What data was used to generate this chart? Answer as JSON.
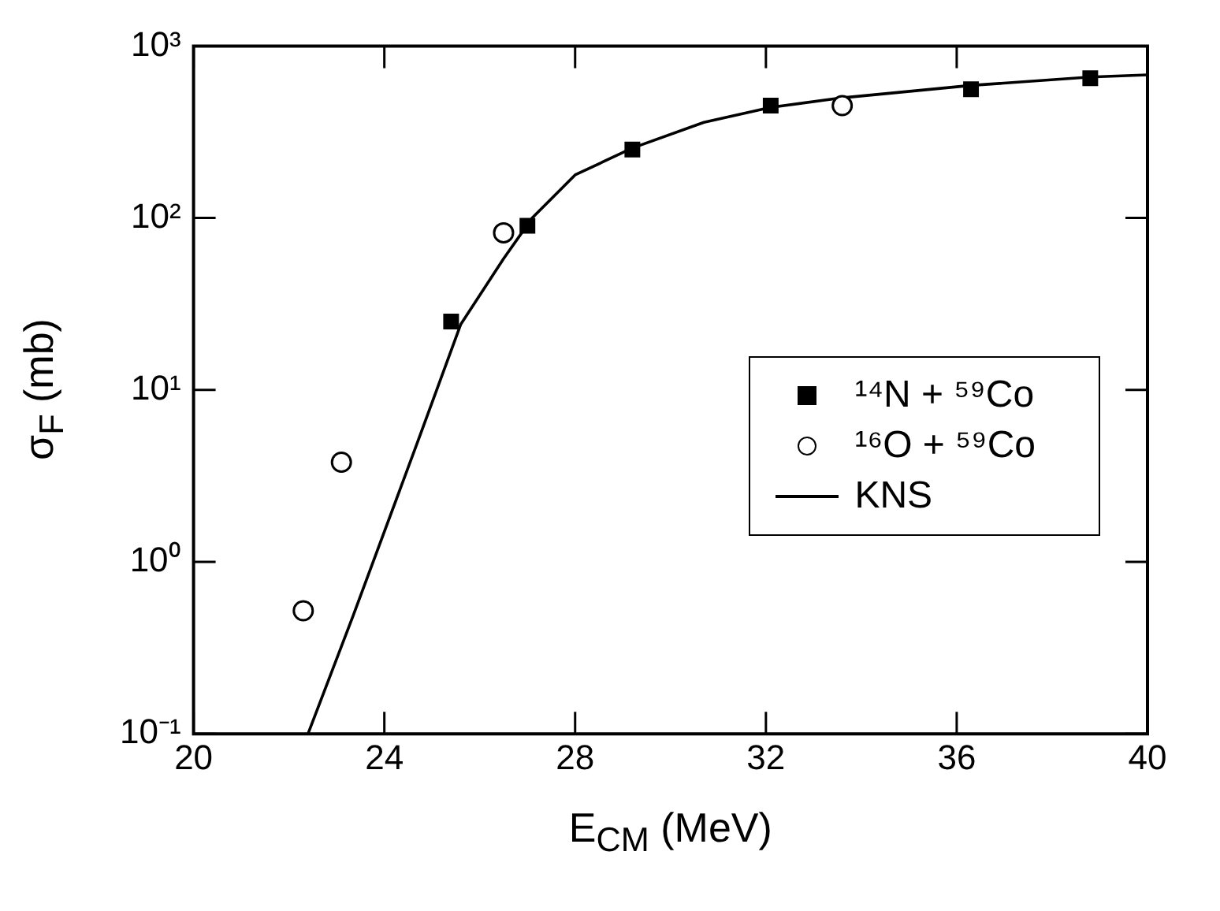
{
  "chart_data": {
    "type": "scatter",
    "xlabel": "E$_{CM}$ (MeV)",
    "ylabel": "σ$_{F}$ (mb)",
    "xlim": [
      20,
      40
    ],
    "xticks": [
      20,
      24,
      28,
      32,
      36,
      40
    ],
    "ylim": [
      0.1,
      1000
    ],
    "yticks": [
      {
        "value": 0.1,
        "label": "10⁻¹"
      },
      {
        "value": 1,
        "label": "10⁰"
      },
      {
        "value": 10,
        "label": "10¹"
      },
      {
        "value": 100,
        "label": "10²"
      },
      {
        "value": 1000,
        "label": "10³"
      }
    ],
    "log": "y",
    "grid": false,
    "legend": "right",
    "series": [
      {
        "name": "¹⁴N + ⁵⁹Co",
        "type": "scatter",
        "marker": "square",
        "color": "#000000",
        "x": [
          25.4,
          27.0,
          29.2,
          32.1,
          36.3,
          38.8
        ],
        "values": [
          25,
          90,
          250,
          450,
          560,
          650
        ]
      },
      {
        "name": "¹⁶O + ⁵⁹Co",
        "type": "scatter",
        "marker": "circle",
        "color": "#000000",
        "x": [
          22.3,
          23.1,
          26.5,
          33.6
        ],
        "values": [
          0.52,
          3.8,
          82,
          450
        ]
      },
      {
        "name": "KNS",
        "type": "line",
        "marker": "none",
        "color": "#000000",
        "x": [
          22.4,
          23.35,
          24.7,
          25.6,
          26.5,
          27.1,
          28.0,
          29.2,
          30.7,
          32.1,
          33.6,
          36.3,
          38.8,
          40
        ],
        "values": [
          0.1,
          0.49,
          5,
          24,
          58,
          100,
          178,
          255,
          360,
          440,
          500,
          590,
          660,
          680
        ]
      }
    ]
  }
}
